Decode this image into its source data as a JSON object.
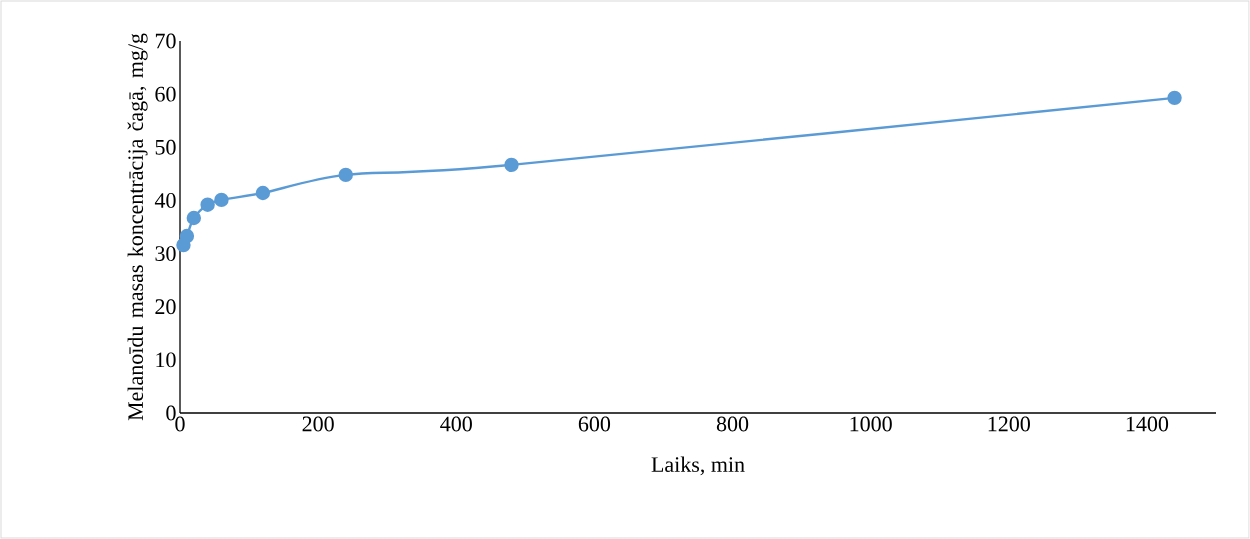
{
  "chart_data": {
    "type": "line",
    "xlabel": "Laiks, min",
    "ylabel": "Melanoīdu masas koncentrācija čagā, mg/g",
    "x": [
      5,
      10,
      20,
      40,
      60,
      120,
      240,
      480,
      1440
    ],
    "series": [
      {
        "color": "#5b9bd5",
        "values": [
          31.6,
          33.3,
          36.7,
          39.2,
          40.1,
          41.4,
          44.8,
          46.7,
          59.3
        ]
      }
    ],
    "xlim": [
      0,
      1500
    ],
    "ylim": [
      0,
      70
    ],
    "xticks": [
      0,
      200,
      400,
      600,
      800,
      1000,
      1200,
      1400
    ],
    "yticks": [
      0,
      10,
      20,
      30,
      40,
      50,
      60,
      70
    ],
    "marker": "circle",
    "line_style": "solid"
  }
}
